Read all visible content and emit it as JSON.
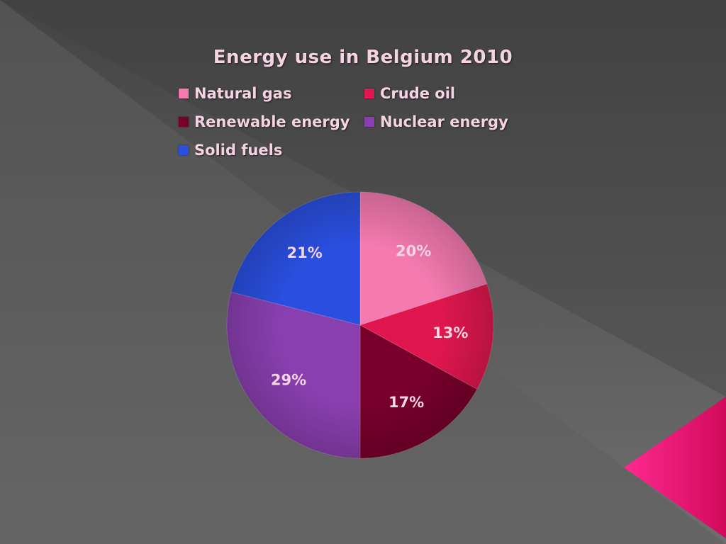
{
  "chart_data": {
    "type": "pie",
    "title": "Energy use in Belgium 2010",
    "slices": [
      {
        "name": "Natural gas",
        "value": 20,
        "label": "20%",
        "color": "#f47ab0"
      },
      {
        "name": "Crude oil",
        "value": 13,
        "label": "13%",
        "color": "#e0174f"
      },
      {
        "name": "Renewable energy",
        "value": 17,
        "label": "17%",
        "color": "#78002b"
      },
      {
        "name": "Nuclear energy",
        "value": 29,
        "label": "29%",
        "color": "#8a3fb0"
      },
      {
        "name": "Solid fuels",
        "value": 21,
        "label": "21%",
        "color": "#2a4fe0"
      }
    ],
    "legend_position": "top"
  },
  "theme": {
    "background": "#5a5a5a",
    "accent": "#e8116f"
  }
}
